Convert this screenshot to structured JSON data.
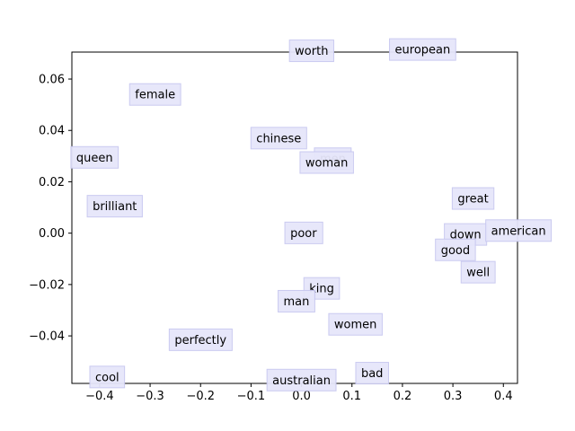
{
  "chart_data": {
    "type": "scatter",
    "title": "",
    "xlabel": "",
    "ylabel": "",
    "xlim": [
      -0.455,
      0.428
    ],
    "ylim": [
      -0.0585,
      0.0705
    ],
    "xticks": [
      -0.4,
      -0.3,
      -0.2,
      -0.1,
      0.0,
      0.1,
      0.2,
      0.3,
      0.4
    ],
    "xtick_labels": [
      "−0.4",
      "−0.3",
      "−0.2",
      "−0.1",
      "0.0",
      "0.1",
      "0.2",
      "0.3",
      "0.4"
    ],
    "yticks": [
      -0.04,
      -0.02,
      0.0,
      0.02,
      0.04,
      0.06
    ],
    "ytick_labels": [
      "−0.04",
      "−0.02",
      "0.00",
      "0.02",
      "0.04",
      "0.06"
    ],
    "grid": false,
    "box_color": "#e6e6fa",
    "box_edge_color": "#c8c8f0",
    "points": [
      {
        "label": "worth",
        "x": 0.02,
        "y": 0.071
      },
      {
        "label": "european",
        "x": 0.24,
        "y": 0.0715
      },
      {
        "label": "female",
        "x": -0.29,
        "y": 0.054
      },
      {
        "label": "chinese",
        "x": -0.045,
        "y": 0.037
      },
      {
        "label": "men",
        "x": 0.062,
        "y": 0.029
      },
      {
        "label": "woman",
        "x": 0.05,
        "y": 0.0275
      },
      {
        "label": "queen",
        "x": -0.41,
        "y": 0.0295
      },
      {
        "label": "brilliant",
        "x": -0.37,
        "y": 0.0105
      },
      {
        "label": "great",
        "x": 0.34,
        "y": 0.0135
      },
      {
        "label": "poor",
        "x": 0.004,
        "y": 0.0001
      },
      {
        "label": "down",
        "x": 0.325,
        "y": -0.0005
      },
      {
        "label": "american",
        "x": 0.43,
        "y": 0.001
      },
      {
        "label": "good",
        "x": 0.305,
        "y": -0.0065
      },
      {
        "label": "well",
        "x": 0.35,
        "y": -0.0152
      },
      {
        "label": "king",
        "x": 0.04,
        "y": -0.0215
      },
      {
        "label": "man",
        "x": -0.01,
        "y": -0.0265
      },
      {
        "label": "women",
        "x": 0.107,
        "y": -0.0355
      },
      {
        "label": "perfectly",
        "x": -0.2,
        "y": -0.0415
      },
      {
        "label": "cool",
        "x": -0.385,
        "y": -0.056
      },
      {
        "label": "bad",
        "x": 0.14,
        "y": -0.0545
      },
      {
        "label": "australian",
        "x": 0.0,
        "y": -0.0572
      }
    ]
  }
}
